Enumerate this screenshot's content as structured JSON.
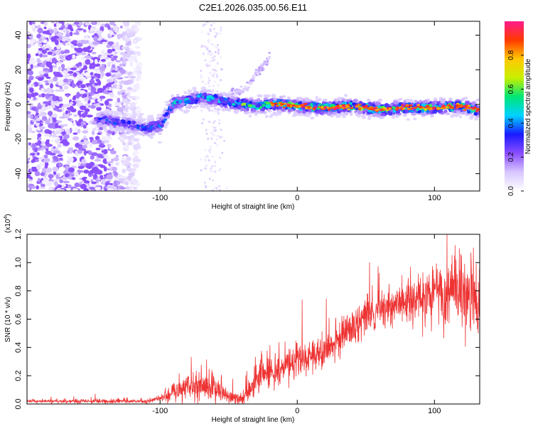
{
  "title": "C2E1.2026.035.00.56.E11",
  "colorbar": {
    "label": "Normalized spectral amplitude",
    "ticks": [
      "0.0",
      "0.2",
      "0.4",
      "0.6",
      "0.8"
    ],
    "tick_values": [
      0.0,
      0.2,
      0.4,
      0.6,
      0.8
    ],
    "range": [
      0,
      1
    ],
    "colors": [
      "#ffffff",
      "#d8c6ff",
      "#8a4dff",
      "#1a1aff",
      "#00d2ff",
      "#00e676",
      "#c8f000",
      "#ffc800",
      "#ff3a00",
      "#ff1a8c"
    ]
  },
  "chart_data": [
    {
      "type": "heatmap",
      "title": "C2E1.2026.035.00.56.E11",
      "xlabel": "Height of straight line (km)",
      "ylabel": "Frequency (Hz)",
      "xlim": [
        -197,
        133
      ],
      "ylim": [
        -50,
        48
      ],
      "xticks": [
        -100,
        0,
        100
      ],
      "xtick_labels": [
        "-100",
        "0",
        "100"
      ],
      "yticks": [
        -40,
        -20,
        0,
        20,
        40
      ],
      "ytick_labels": [
        "-40",
        "-20",
        "0",
        "20",
        "40"
      ],
      "ridge": {
        "description": "dominant frequency ridge (Hz) vs height (km)",
        "x": [
          -140,
          -120,
          -110,
          -100,
          -90,
          -80,
          -70,
          -60,
          -50,
          -40,
          -30,
          -20,
          -10,
          0,
          20,
          40,
          60,
          80,
          100,
          120,
          130
        ],
        "y": [
          -9,
          -12,
          -14,
          -12,
          1,
          2,
          4,
          3,
          1,
          0,
          -1,
          0,
          0,
          -1,
          -2,
          -1,
          -3,
          -2,
          -2,
          -1,
          -3
        ]
      },
      "branch": {
        "description": "rising branch (Hz) vs height (km)",
        "x": [
          -50,
          -40,
          -35,
          -30,
          -25,
          -20
        ],
        "y": [
          6,
          8,
          12,
          17,
          22,
          27
        ]
      }
    },
    {
      "type": "line",
      "title": "",
      "xlabel": "Height of straight line (km)",
      "ylabel": "SNR (10 * v/v)",
      "y_scale_label": "(x10",
      "y_scale_exp": "4",
      "y_scale_close": ")",
      "color": "#ee3333",
      "xlim": [
        -197,
        133
      ],
      "ylim": [
        0,
        1.2
      ],
      "xticks": [
        -100,
        0,
        100
      ],
      "xtick_labels": [
        "-100",
        "0",
        "100"
      ],
      "yticks": [
        0.0,
        0.2,
        0.4,
        0.6,
        0.8,
        1.0,
        1.2
      ],
      "ytick_labels": [
        "0.0",
        "0.2",
        "0.4",
        "0.6",
        "0.8",
        "1.0",
        "1.2"
      ],
      "envelope": {
        "x": [
          -197,
          -110,
          -100,
          -90,
          -80,
          -70,
          -60,
          -50,
          -40,
          -35,
          -30,
          -20,
          -10,
          0,
          20,
          40,
          60,
          80,
          100,
          110,
          120,
          130,
          133
        ],
        "mean": [
          0.02,
          0.02,
          0.04,
          0.09,
          0.13,
          0.12,
          0.11,
          0.05,
          0.03,
          0.1,
          0.2,
          0.23,
          0.26,
          0.3,
          0.38,
          0.55,
          0.66,
          0.73,
          0.78,
          0.8,
          0.8,
          0.75,
          0.7
        ],
        "noise": [
          0.008,
          0.01,
          0.015,
          0.05,
          0.07,
          0.07,
          0.06,
          0.03,
          0.02,
          0.06,
          0.09,
          0.07,
          0.07,
          0.07,
          0.07,
          0.08,
          0.09,
          0.1,
          0.13,
          0.16,
          0.18,
          0.18,
          0.18
        ]
      }
    }
  ]
}
